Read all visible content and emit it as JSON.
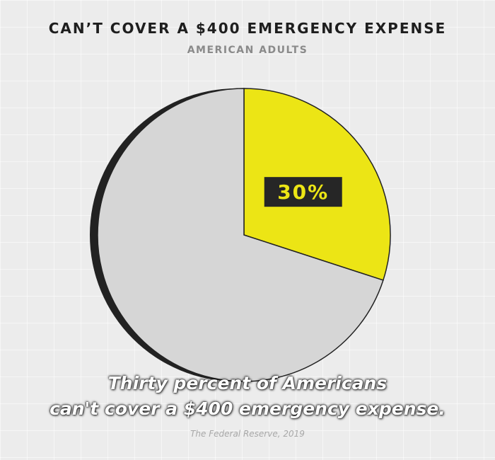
{
  "chart_data": {
    "type": "pie",
    "title": "CAN’T COVER A $400 EMERGENCY EXPENSE",
    "subtitle": "AMERICAN ADULTS",
    "slices": [
      {
        "label": "30%",
        "value": 30,
        "color": "#ece515"
      },
      {
        "label": "",
        "value": 70,
        "color": "#d6d6d6"
      }
    ]
  },
  "caption": {
    "line1": "Thirty percent of Americans",
    "line2": "can't cover a $400 emergency expense."
  },
  "source": "The Federal Reserve, 2019"
}
